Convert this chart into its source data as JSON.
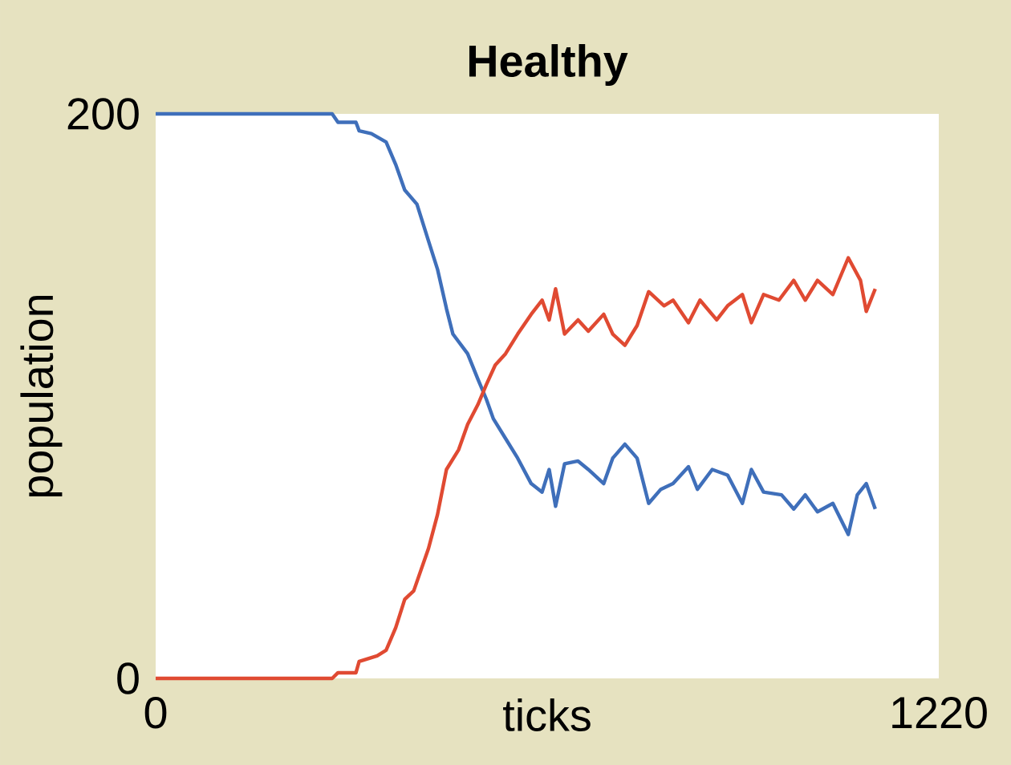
{
  "chart_data": {
    "type": "line",
    "title": "Healthy",
    "xlabel": "ticks",
    "ylabel": "population",
    "xlim": [
      0,
      1220
    ],
    "ylim": [
      0,
      200
    ],
    "xticks": [
      0,
      1220
    ],
    "yticks": [
      0,
      200
    ],
    "series": [
      {
        "color": "#3f6fba",
        "x": [
          0,
          275,
          284,
          312,
          317,
          336,
          359,
          374,
          388,
          407,
          425,
          439,
          453,
          463,
          486,
          502,
          515,
          526,
          545,
          564,
          585,
          602,
          613,
          623,
          637,
          658,
          674,
          698,
          712,
          731,
          750,
          768,
          787,
          806,
          830,
          844,
          867,
          891,
          914,
          928,
          947,
          975,
          994,
          1012,
          1031,
          1055,
          1079,
          1093,
          1107,
          1121
        ],
        "values": [
          200,
          200,
          197,
          197,
          194,
          193,
          190,
          182,
          173,
          168,
          155,
          145,
          131,
          122,
          115,
          106,
          99,
          92,
          85,
          78,
          69,
          66,
          74,
          61,
          76,
          77,
          74,
          69,
          78,
          83,
          78,
          62,
          67,
          69,
          75,
          67,
          74,
          72,
          62,
          74,
          66,
          65,
          60,
          65,
          59,
          62,
          51,
          65,
          69,
          60
        ]
      },
      {
        "color": "#e04a32",
        "x": [
          0,
          275,
          284,
          312,
          317,
          345,
          359,
          374,
          388,
          402,
          425,
          439,
          453,
          472,
          486,
          502,
          515,
          529,
          545,
          564,
          585,
          602,
          613,
          623,
          637,
          658,
          674,
          698,
          712,
          731,
          750,
          768,
          792,
          806,
          830,
          848,
          874,
          891,
          914,
          928,
          947,
          971,
          994,
          1012,
          1031,
          1055,
          1079,
          1098,
          1107,
          1121
        ],
        "values": [
          0,
          0,
          2,
          2,
          6,
          8,
          10,
          18,
          28,
          31,
          46,
          58,
          74,
          81,
          90,
          97,
          104,
          111,
          115,
          122,
          129,
          134,
          127,
          138,
          122,
          127,
          123,
          129,
          122,
          118,
          125,
          137,
          132,
          134,
          126,
          134,
          127,
          132,
          136,
          126,
          136,
          134,
          141,
          134,
          141,
          136,
          149,
          141,
          130,
          138
        ]
      }
    ]
  }
}
